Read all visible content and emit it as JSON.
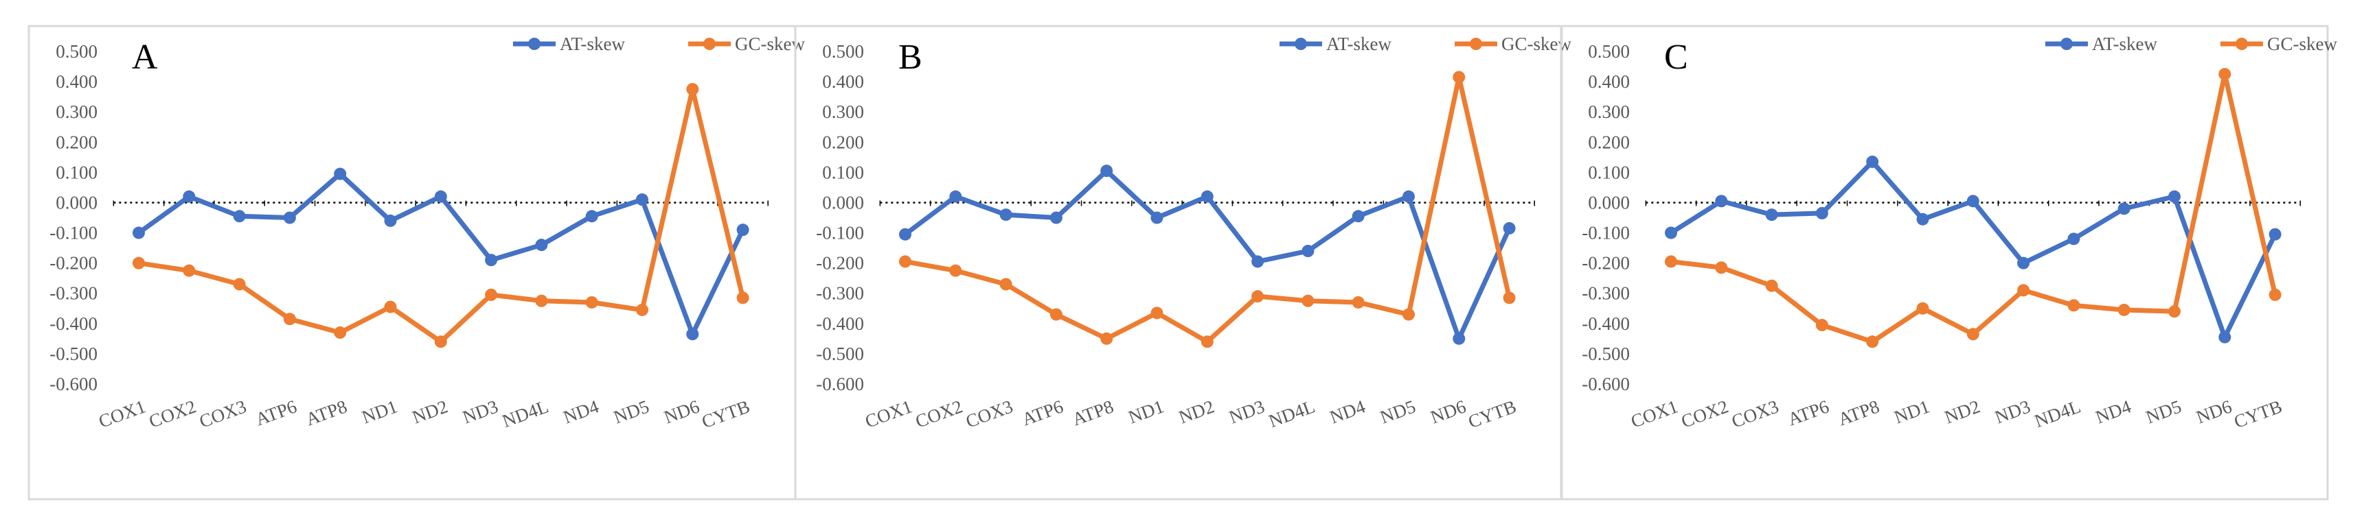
{
  "chart_data": [
    {
      "type": "line",
      "panel_label": "A",
      "categories": [
        "COX1",
        "COX2",
        "COX3",
        "ATP6",
        "ATP8",
        "ND1",
        "ND2",
        "ND3",
        "ND4L",
        "ND4",
        "ND5",
        "ND6",
        "CYTB"
      ],
      "ylim": [
        -0.6,
        0.5
      ],
      "yticks": [
        "0.500",
        "0.400",
        "0.300",
        "0.200",
        "0.100",
        "0.000",
        "-0.100",
        "-0.200",
        "-0.300",
        "-0.400",
        "-0.500",
        "-0.600"
      ],
      "grid": false,
      "legend": "top-right",
      "series": [
        {
          "name": "AT-skew",
          "color": "#4472C4",
          "values": [
            -0.1,
            0.02,
            -0.045,
            -0.05,
            0.095,
            -0.06,
            0.02,
            -0.19,
            -0.14,
            -0.045,
            0.01,
            -0.435,
            -0.09
          ]
        },
        {
          "name": "GC-skew",
          "color": "#ED7D31",
          "values": [
            -0.2,
            -0.225,
            -0.27,
            -0.385,
            -0.43,
            -0.345,
            -0.46,
            -0.305,
            -0.325,
            -0.33,
            -0.355,
            0.375,
            -0.315
          ]
        }
      ]
    },
    {
      "type": "line",
      "panel_label": "B",
      "categories": [
        "COX1",
        "COX2",
        "COX3",
        "ATP6",
        "ATP8",
        "ND1",
        "ND2",
        "ND3",
        "ND4L",
        "ND4",
        "ND5",
        "ND6",
        "CYTB"
      ],
      "ylim": [
        -0.6,
        0.5
      ],
      "yticks": [
        "0.500",
        "0.400",
        "0.300",
        "0.200",
        "0.100",
        "0.000",
        "-0.100",
        "-0.200",
        "-0.300",
        "-0.400",
        "-0.500",
        "-0.600"
      ],
      "grid": false,
      "legend": "top-right",
      "series": [
        {
          "name": "AT-skew",
          "color": "#4472C4",
          "values": [
            -0.105,
            0.02,
            -0.04,
            -0.05,
            0.105,
            -0.05,
            0.02,
            -0.195,
            -0.16,
            -0.045,
            0.02,
            -0.45,
            -0.085
          ]
        },
        {
          "name": "GC-skew",
          "color": "#ED7D31",
          "values": [
            -0.195,
            -0.225,
            -0.27,
            -0.37,
            -0.45,
            -0.365,
            -0.46,
            -0.31,
            -0.325,
            -0.33,
            -0.37,
            0.415,
            -0.315
          ]
        }
      ]
    },
    {
      "type": "line",
      "panel_label": "C",
      "categories": [
        "COX1",
        "COX2",
        "COX3",
        "ATP6",
        "ATP8",
        "ND1",
        "ND2",
        "ND3",
        "ND4L",
        "ND4",
        "ND5",
        "ND6",
        "CYTB"
      ],
      "ylim": [
        -0.6,
        0.5
      ],
      "yticks": [
        "0.500",
        "0.400",
        "0.300",
        "0.200",
        "0.100",
        "0.000",
        "-0.100",
        "-0.200",
        "-0.300",
        "-0.400",
        "-0.500",
        "-0.600"
      ],
      "grid": false,
      "legend": "top-right",
      "series": [
        {
          "name": "AT-skew",
          "color": "#4472C4",
          "values": [
            -0.1,
            0.005,
            -0.04,
            -0.035,
            0.135,
            -0.055,
            0.005,
            -0.2,
            -0.12,
            -0.02,
            0.02,
            -0.445,
            -0.105
          ]
        },
        {
          "name": "GC-skew",
          "color": "#ED7D31",
          "values": [
            -0.195,
            -0.215,
            -0.275,
            -0.405,
            -0.46,
            -0.35,
            -0.435,
            -0.29,
            -0.34,
            -0.355,
            -0.36,
            0.425,
            -0.305
          ]
        }
      ]
    }
  ]
}
